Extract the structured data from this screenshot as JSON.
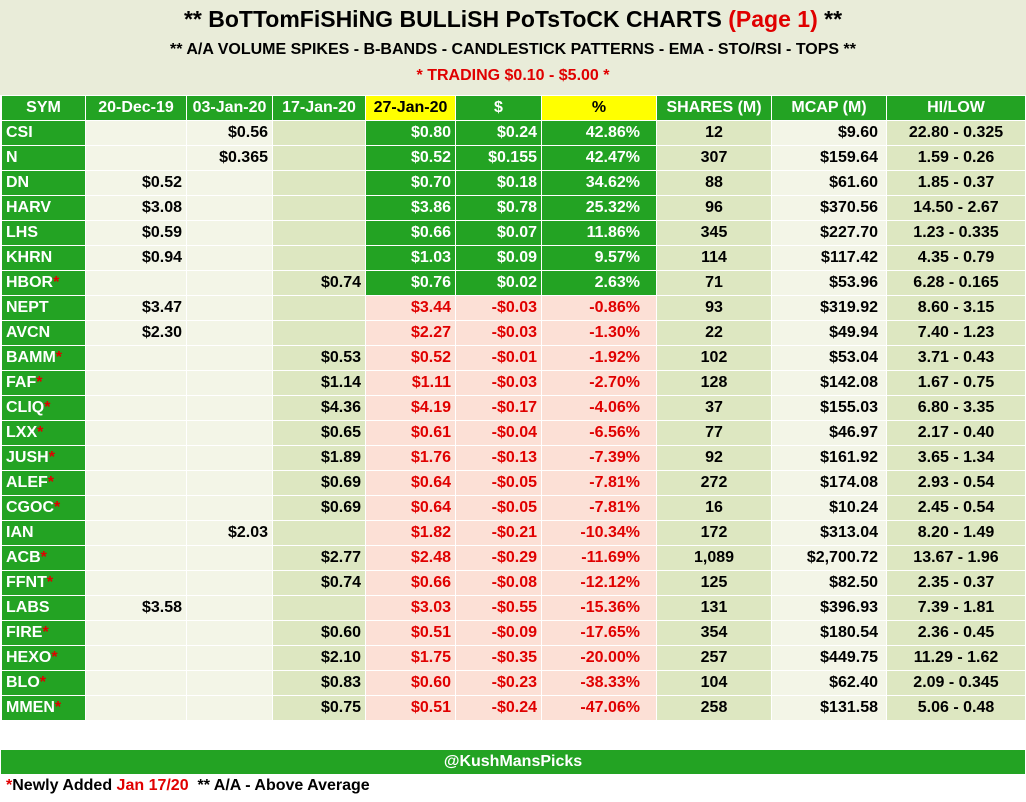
{
  "header": {
    "title_main": "** BoTTomFiSHiNG BULLiSH PoTsToCK CHARTS",
    "title_page": "(Page 1)",
    "title_end": "**",
    "subtitle": "** A/A VOLUME SPIKES - B-BANDS - CANDLESTICK PATTERNS - EMA - STO/RSI - TOPS **",
    "range": "* TRADING $0.10 - $5.00 *"
  },
  "columns": [
    "SYM",
    "20-Dec-19",
    "03-Jan-20",
    "17-Jan-20",
    "27-Jan-20",
    "$",
    "%",
    "SHARES (M)",
    "MCAP (M)",
    "HI/LOW"
  ],
  "rows": [
    {
      "sym": "CSI",
      "new": false,
      "d20": "",
      "d03": "$0.56",
      "d17": "",
      "d27": "$0.80",
      "chg": "$0.24",
      "pct": "42.86%",
      "shares": "12",
      "mcap": "$9.60",
      "hilow": "22.80 - 0.325",
      "up": true
    },
    {
      "sym": "N",
      "new": false,
      "d20": "",
      "d03": "$0.365",
      "d17": "",
      "d27": "$0.52",
      "chg": "$0.155",
      "pct": "42.47%",
      "shares": "307",
      "mcap": "$159.64",
      "hilow": "1.59 - 0.26",
      "up": true
    },
    {
      "sym": "DN",
      "new": false,
      "d20": "$0.52",
      "d03": "",
      "d17": "",
      "d27": "$0.70",
      "chg": "$0.18",
      "pct": "34.62%",
      "shares": "88",
      "mcap": "$61.60",
      "hilow": "1.85 - 0.37",
      "up": true
    },
    {
      "sym": "HARV",
      "new": false,
      "d20": "$3.08",
      "d03": "",
      "d17": "",
      "d27": "$3.86",
      "chg": "$0.78",
      "pct": "25.32%",
      "shares": "96",
      "mcap": "$370.56",
      "hilow": "14.50 - 2.67",
      "up": true
    },
    {
      "sym": "LHS",
      "new": false,
      "d20": "$0.59",
      "d03": "",
      "d17": "",
      "d27": "$0.66",
      "chg": "$0.07",
      "pct": "11.86%",
      "shares": "345",
      "mcap": "$227.70",
      "hilow": "1.23 - 0.335",
      "up": true
    },
    {
      "sym": "KHRN",
      "new": false,
      "d20": "$0.94",
      "d03": "",
      "d17": "",
      "d27": "$1.03",
      "chg": "$0.09",
      "pct": "9.57%",
      "shares": "114",
      "mcap": "$117.42",
      "hilow": "4.35 - 0.79",
      "up": true
    },
    {
      "sym": "HBOR",
      "new": true,
      "d20": "",
      "d03": "",
      "d17": "$0.74",
      "d27": "$0.76",
      "chg": "$0.02",
      "pct": "2.63%",
      "shares": "71",
      "mcap": "$53.96",
      "hilow": "6.28 - 0.165",
      "up": true
    },
    {
      "sym": "NEPT",
      "new": false,
      "d20": "$3.47",
      "d03": "",
      "d17": "",
      "d27": "$3.44",
      "chg": "-$0.03",
      "pct": "-0.86%",
      "shares": "93",
      "mcap": "$319.92",
      "hilow": "8.60 - 3.15",
      "up": false
    },
    {
      "sym": "AVCN",
      "new": false,
      "d20": "$2.30",
      "d03": "",
      "d17": "",
      "d27": "$2.27",
      "chg": "-$0.03",
      "pct": "-1.30%",
      "shares": "22",
      "mcap": "$49.94",
      "hilow": "7.40 - 1.23",
      "up": false
    },
    {
      "sym": "BAMM",
      "new": true,
      "d20": "",
      "d03": "",
      "d17": "$0.53",
      "d27": "$0.52",
      "chg": "-$0.01",
      "pct": "-1.92%",
      "shares": "102",
      "mcap": "$53.04",
      "hilow": "3.71 - 0.43",
      "up": false
    },
    {
      "sym": "FAF",
      "new": true,
      "d20": "",
      "d03": "",
      "d17": "$1.14",
      "d27": "$1.11",
      "chg": "-$0.03",
      "pct": "-2.70%",
      "shares": "128",
      "mcap": "$142.08",
      "hilow": "1.67 - 0.75",
      "up": false
    },
    {
      "sym": "CLIQ",
      "new": true,
      "d20": "",
      "d03": "",
      "d17": "$4.36",
      "d27": "$4.19",
      "chg": "-$0.17",
      "pct": "-4.06%",
      "shares": "37",
      "mcap": "$155.03",
      "hilow": "6.80 - 3.35",
      "up": false
    },
    {
      "sym": "LXX",
      "new": true,
      "d20": "",
      "d03": "",
      "d17": "$0.65",
      "d27": "$0.61",
      "chg": "-$0.04",
      "pct": "-6.56%",
      "shares": "77",
      "mcap": "$46.97",
      "hilow": "2.17 - 0.40",
      "up": false
    },
    {
      "sym": "JUSH",
      "new": true,
      "d20": "",
      "d03": "",
      "d17": "$1.89",
      "d27": "$1.76",
      "chg": "-$0.13",
      "pct": "-7.39%",
      "shares": "92",
      "mcap": "$161.92",
      "hilow": "3.65 - 1.34",
      "up": false
    },
    {
      "sym": "ALEF",
      "new": true,
      "d20": "",
      "d03": "",
      "d17": "$0.69",
      "d27": "$0.64",
      "chg": "-$0.05",
      "pct": "-7.81%",
      "shares": "272",
      "mcap": "$174.08",
      "hilow": "2.93 - 0.54",
      "up": false
    },
    {
      "sym": "CGOC",
      "new": true,
      "d20": "",
      "d03": "",
      "d17": "$0.69",
      "d27": "$0.64",
      "chg": "-$0.05",
      "pct": "-7.81%",
      "shares": "16",
      "mcap": "$10.24",
      "hilow": "2.45 - 0.54",
      "up": false
    },
    {
      "sym": "IAN",
      "new": false,
      "d20": "",
      "d03": "$2.03",
      "d17": "",
      "d27": "$1.82",
      "chg": "-$0.21",
      "pct": "-10.34%",
      "shares": "172",
      "mcap": "$313.04",
      "hilow": "8.20 - 1.49",
      "up": false
    },
    {
      "sym": "ACB",
      "new": true,
      "d20": "",
      "d03": "",
      "d17": "$2.77",
      "d27": "$2.48",
      "chg": "-$0.29",
      "pct": "-11.69%",
      "shares": "1,089",
      "mcap": "$2,700.72",
      "hilow": "13.67 - 1.96",
      "up": false
    },
    {
      "sym": "FFNT",
      "new": true,
      "d20": "",
      "d03": "",
      "d17": "$0.74",
      "d27": "$0.66",
      "chg": "-$0.08",
      "pct": "-12.12%",
      "shares": "125",
      "mcap": "$82.50",
      "hilow": "2.35 - 0.37",
      "up": false
    },
    {
      "sym": "LABS",
      "new": false,
      "d20": "$3.58",
      "d03": "",
      "d17": "",
      "d27": "$3.03",
      "chg": "-$0.55",
      "pct": "-15.36%",
      "shares": "131",
      "mcap": "$396.93",
      "hilow": "7.39 - 1.81",
      "up": false
    },
    {
      "sym": "FIRE",
      "new": true,
      "d20": "",
      "d03": "",
      "d17": "$0.60",
      "d27": "$0.51",
      "chg": "-$0.09",
      "pct": "-17.65%",
      "shares": "354",
      "mcap": "$180.54",
      "hilow": "2.36 - 0.45",
      "up": false
    },
    {
      "sym": "HEXO",
      "new": true,
      "d20": "",
      "d03": "",
      "d17": "$2.10",
      "d27": "$1.75",
      "chg": "-$0.35",
      "pct": "-20.00%",
      "shares": "257",
      "mcap": "$449.75",
      "hilow": "11.29 - 1.62",
      "up": false
    },
    {
      "sym": "BLO",
      "new": true,
      "d20": "",
      "d03": "",
      "d17": "$0.83",
      "d27": "$0.60",
      "chg": "-$0.23",
      "pct": "-38.33%",
      "shares": "104",
      "mcap": "$62.40",
      "hilow": "2.09 - 0.345",
      "up": false
    },
    {
      "sym": "MMEN",
      "new": true,
      "d20": "",
      "d03": "",
      "d17": "$0.75",
      "d27": "$0.51",
      "chg": "-$0.24",
      "pct": "-47.06%",
      "shares": "258",
      "mcap": "$131.58",
      "hilow": "5.06 - 0.48",
      "up": false
    }
  ],
  "new_marker": "*",
  "footer": {
    "handle": "@KushMansPicks",
    "note_star": "*",
    "note_text": "Newly Added ",
    "note_date": "Jan 17/20",
    "note_rest": "  ** A/A - Above Average"
  },
  "colors": {
    "green": "#23a323",
    "yellow": "#ffff00",
    "red": "#e00000",
    "pink": "#fce0d6",
    "light_olive": "#dde7c1",
    "pale": "#f3f5e7"
  }
}
